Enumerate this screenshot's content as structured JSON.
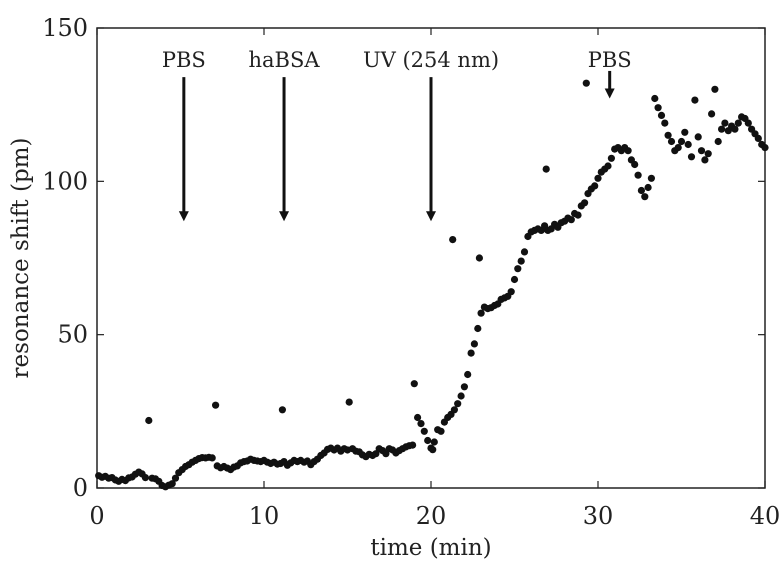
{
  "chart_data": {
    "type": "scatter",
    "xlabel": "time (min)",
    "ylabel": "resonance shift (pm)",
    "xlim": [
      0,
      40
    ],
    "ylim": [
      0,
      150
    ],
    "xticks": [
      0,
      10,
      20,
      30,
      40
    ],
    "yticks": [
      0,
      50,
      100,
      150
    ],
    "grid": false,
    "marker_color": "#111111",
    "annotations": [
      {
        "text": "PBS",
        "x": 5.2,
        "arrow_from": 134,
        "arrow_to": 87
      },
      {
        "text": "haBSA",
        "x": 11.2,
        "arrow_from": 134,
        "arrow_to": 87
      },
      {
        "text": "UV (254 nm)",
        "x": 20.0,
        "arrow_from": 134,
        "arrow_to": 87
      },
      {
        "text": "PBS",
        "x": 30.7,
        "arrow_from": 136,
        "arrow_to": 127
      }
    ],
    "points": [
      [
        0.1,
        4
      ],
      [
        0.3,
        3.5
      ],
      [
        0.5,
        3.8
      ],
      [
        0.7,
        3.2
      ],
      [
        0.9,
        3.4
      ],
      [
        1.1,
        2.6
      ],
      [
        1.3,
        2.2
      ],
      [
        1.5,
        2.8
      ],
      [
        1.7,
        2.4
      ],
      [
        1.9,
        3.3
      ],
      [
        2.1,
        3.6
      ],
      [
        2.3,
        4.5
      ],
      [
        2.5,
        5.2
      ],
      [
        2.7,
        4.6
      ],
      [
        2.9,
        3.4
      ],
      [
        3.1,
        22
      ],
      [
        3.3,
        3.2
      ],
      [
        3.5,
        3.0
      ],
      [
        3.7,
        2.2
      ],
      [
        3.9,
        0.8
      ],
      [
        4.1,
        0.4
      ],
      [
        4.3,
        0.9
      ],
      [
        4.5,
        1.4
      ],
      [
        4.7,
        3.2
      ],
      [
        4.9,
        5.0
      ],
      [
        5.1,
        6.0
      ],
      [
        5.3,
        7.0
      ],
      [
        5.5,
        7.6
      ],
      [
        5.7,
        8.4
      ],
      [
        5.9,
        9.0
      ],
      [
        6.1,
        9.6
      ],
      [
        6.3,
        9.9
      ],
      [
        6.5,
        9.8
      ],
      [
        6.7,
        10.0
      ],
      [
        6.9,
        9.8
      ],
      [
        7.1,
        27
      ],
      [
        7.2,
        7.2
      ],
      [
        7.4,
        6.6
      ],
      [
        7.6,
        7.0
      ],
      [
        7.8,
        6.5
      ],
      [
        8.0,
        6.0
      ],
      [
        8.2,
        6.8
      ],
      [
        8.4,
        7.2
      ],
      [
        8.6,
        8.2
      ],
      [
        8.8,
        8.6
      ],
      [
        9.0,
        8.8
      ],
      [
        9.2,
        9.4
      ],
      [
        9.4,
        9.0
      ],
      [
        9.6,
        8.8
      ],
      [
        9.8,
        8.6
      ],
      [
        10.0,
        9.0
      ],
      [
        10.2,
        8.4
      ],
      [
        10.4,
        8.0
      ],
      [
        10.6,
        8.4
      ],
      [
        10.8,
        7.8
      ],
      [
        11.0,
        8.0
      ],
      [
        11.1,
        25.5
      ],
      [
        11.2,
        8.6
      ],
      [
        11.4,
        7.4
      ],
      [
        11.6,
        8.2
      ],
      [
        11.8,
        9.0
      ],
      [
        12.0,
        8.6
      ],
      [
        12.2,
        9.0
      ],
      [
        12.4,
        8.4
      ],
      [
        12.6,
        8.8
      ],
      [
        12.8,
        7.6
      ],
      [
        13.0,
        8.6
      ],
      [
        13.2,
        9.4
      ],
      [
        13.4,
        10.6
      ],
      [
        13.6,
        11.4
      ],
      [
        13.8,
        12.6
      ],
      [
        14.0,
        13.0
      ],
      [
        14.2,
        12.4
      ],
      [
        14.4,
        13.0
      ],
      [
        14.6,
        12.0
      ],
      [
        14.8,
        12.8
      ],
      [
        15.0,
        12.4
      ],
      [
        15.1,
        28
      ],
      [
        15.3,
        12.8
      ],
      [
        15.5,
        12.0
      ],
      [
        15.7,
        11.8
      ],
      [
        15.9,
        10.8
      ],
      [
        16.1,
        10.2
      ],
      [
        16.3,
        11.0
      ],
      [
        16.5,
        10.6
      ],
      [
        16.7,
        11.2
      ],
      [
        16.9,
        12.8
      ],
      [
        17.1,
        12.2
      ],
      [
        17.3,
        11.2
      ],
      [
        17.5,
        12.8
      ],
      [
        17.7,
        12.4
      ],
      [
        17.9,
        11.4
      ],
      [
        18.1,
        12.2
      ],
      [
        18.3,
        12.8
      ],
      [
        18.5,
        13.4
      ],
      [
        18.7,
        13.8
      ],
      [
        18.9,
        14.0
      ],
      [
        19.0,
        34
      ],
      [
        19.2,
        23
      ],
      [
        19.4,
        21
      ],
      [
        19.6,
        18.5
      ],
      [
        19.8,
        15.5
      ],
      [
        20.0,
        13.0
      ],
      [
        20.1,
        12.5
      ],
      [
        20.2,
        15.0
      ],
      [
        20.4,
        19.0
      ],
      [
        20.6,
        18.5
      ],
      [
        20.8,
        21.5
      ],
      [
        21.0,
        23.0
      ],
      [
        21.2,
        24.0
      ],
      [
        21.4,
        25.5
      ],
      [
        21.6,
        27.5
      ],
      [
        21.8,
        30.0
      ],
      [
        22.0,
        33.0
      ],
      [
        22.2,
        37.0
      ],
      [
        22.4,
        44.0
      ],
      [
        22.6,
        47.0
      ],
      [
        22.8,
        52.0
      ],
      [
        23.0,
        57.0
      ],
      [
        23.2,
        59.0
      ],
      [
        23.4,
        58.5
      ],
      [
        23.6,
        58.8
      ],
      [
        23.8,
        59.5
      ],
      [
        24.0,
        60.0
      ],
      [
        24.2,
        61.5
      ],
      [
        24.4,
        62.0
      ],
      [
        24.6,
        62.5
      ],
      [
        24.8,
        64.0
      ],
      [
        25.0,
        68.0
      ],
      [
        25.2,
        71.5
      ],
      [
        25.4,
        74.0
      ],
      [
        25.6,
        77.0
      ],
      [
        25.8,
        82.0
      ],
      [
        26.0,
        83.5
      ],
      [
        26.2,
        84.0
      ],
      [
        26.4,
        84.5
      ],
      [
        26.6,
        84.0
      ],
      [
        26.8,
        85.5
      ],
      [
        27.0,
        84.0
      ],
      [
        27.2,
        84.5
      ],
      [
        27.4,
        86.0
      ],
      [
        27.6,
        85.0
      ],
      [
        27.8,
        86.5
      ],
      [
        28.0,
        87.0
      ],
      [
        28.2,
        88.0
      ],
      [
        28.4,
        87.5
      ],
      [
        28.6,
        89.5
      ],
      [
        28.8,
        89.0
      ],
      [
        29.0,
        92.0
      ],
      [
        29.2,
        93.0
      ],
      [
        29.4,
        96.0
      ],
      [
        29.6,
        97.5
      ],
      [
        29.8,
        98.5
      ],
      [
        30.0,
        101.0
      ],
      [
        30.2,
        103.0
      ],
      [
        30.4,
        104.0
      ],
      [
        30.6,
        105.0
      ],
      [
        30.8,
        107.5
      ],
      [
        31.0,
        110.5
      ],
      [
        31.2,
        111.0
      ],
      [
        31.4,
        110.0
      ],
      [
        31.6,
        111.0
      ],
      [
        31.8,
        110.0
      ],
      [
        32.0,
        107.0
      ],
      [
        32.2,
        105.5
      ],
      [
        32.4,
        102.0
      ],
      [
        32.6,
        97.0
      ],
      [
        32.8,
        95.0
      ],
      [
        33.0,
        98.0
      ],
      [
        33.2,
        101.0
      ],
      [
        21.3,
        81
      ],
      [
        22.9,
        75
      ],
      [
        26.9,
        104
      ],
      [
        29.3,
        132
      ],
      [
        33.4,
        127
      ],
      [
        33.6,
        124
      ],
      [
        33.8,
        121.5
      ],
      [
        34.0,
        119.0
      ],
      [
        34.2,
        115.0
      ],
      [
        34.4,
        113.0
      ],
      [
        34.6,
        110.0
      ],
      [
        34.8,
        111.0
      ],
      [
        35.0,
        113.0
      ],
      [
        35.2,
        116.0
      ],
      [
        35.4,
        112.0
      ],
      [
        35.6,
        108.0
      ],
      [
        35.8,
        126.5
      ],
      [
        36.0,
        114.5
      ],
      [
        36.2,
        110.0
      ],
      [
        36.4,
        107.0
      ],
      [
        36.6,
        109.0
      ],
      [
        36.8,
        122.0
      ],
      [
        37.0,
        130.0
      ],
      [
        37.2,
        113.0
      ],
      [
        37.4,
        117.0
      ],
      [
        37.6,
        119.0
      ],
      [
        37.8,
        116.5
      ],
      [
        38.0,
        118.0
      ],
      [
        38.2,
        117.0
      ],
      [
        38.4,
        119.0
      ],
      [
        38.6,
        121.0
      ],
      [
        38.8,
        120.5
      ],
      [
        39.0,
        119.0
      ],
      [
        39.2,
        117.0
      ],
      [
        39.4,
        115.5
      ],
      [
        39.6,
        114.0
      ],
      [
        39.8,
        112.0
      ],
      [
        40.0,
        111.0
      ]
    ]
  }
}
